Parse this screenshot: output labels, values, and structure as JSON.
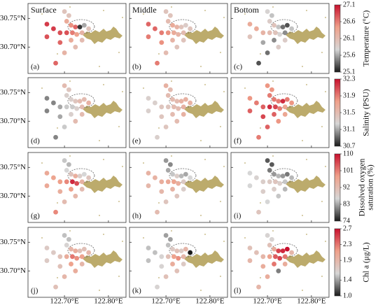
{
  "chart_data": {
    "type": "scatter",
    "columns": [
      "Surface",
      "Middle",
      "Bottom"
    ],
    "xlim": [
      122.617,
      122.84
    ],
    "ylim": [
      30.654,
      30.776
    ],
    "xticks": [
      {
        "value": 122.7,
        "label": "122.70°E"
      },
      {
        "value": 122.8,
        "label": "122.80°E"
      }
    ],
    "yticks": [
      {
        "value": 30.75,
        "label": "30.75°N"
      },
      {
        "value": 30.7,
        "label": "30.70°N"
      }
    ],
    "land_color": "#bcab6c",
    "stations": {
      "x": [
        122.7,
        122.71,
        122.705,
        122.715,
        122.725,
        122.735,
        122.745,
        122.755,
        122.74,
        122.728,
        122.718,
        122.705,
        122.69,
        122.675,
        122.66,
        122.66,
        122.69,
        122.715,
        122.74,
        122.7,
        122.68,
        122.725
      ],
      "y": [
        30.762,
        30.755,
        30.745,
        30.738,
        30.735,
        30.735,
        30.738,
        30.732,
        30.725,
        30.722,
        30.725,
        30.725,
        30.725,
        30.732,
        30.74,
        30.718,
        30.708,
        30.712,
        30.712,
        30.69,
        30.672,
        30.7
      ]
    },
    "rows": [
      {
        "colorbar": {
          "label": [
            "Temperature (°C)"
          ],
          "lim": [
            25.1,
            27.1
          ],
          "ticks": [
            25.1,
            25.6,
            26.1,
            26.6,
            27.1
          ],
          "cmap": [
            "#1a1a1a",
            "#d6d6d6",
            "#efa08a",
            "#c8102e"
          ]
        },
        "panels": [
          {
            "label": "(a)",
            "values": [
              26.0,
              26.0,
              26.3,
              26.5,
              26.7,
              25.2,
              25.6,
              26.0,
              26.2,
              26.4,
              26.6,
              26.8,
              26.8,
              26.9,
              26.9,
              26.8,
              26.7,
              26.3,
              26.1,
              26.2,
              26.7,
              26.1
            ]
          },
          {
            "label": "(b)",
            "values": [
              26.0,
              26.0,
              26.1,
              26.3,
              26.2,
              26.0,
              25.9,
              26.0,
              26.1,
              26.2,
              26.3,
              26.5,
              26.6,
              26.7,
              26.7,
              26.6,
              26.5,
              26.2,
              26.0,
              26.1,
              26.6,
              26.0
            ]
          },
          {
            "label": "(c)",
            "values": [
              25.8,
              25.7,
              25.9,
              26.0,
              25.7,
              25.4,
              25.3,
              25.7,
              25.5,
              25.8,
              26.0,
              26.1,
              26.2,
              26.3,
              26.3,
              26.0,
              25.6,
              25.5,
              25.9,
              25.4,
              25.3,
              25.9
            ]
          }
        ]
      },
      {
        "colorbar": {
          "label": [
            "Salinity (PSU)"
          ],
          "lim": [
            30.7,
            32.3
          ],
          "ticks": [
            30.7,
            31.1,
            31.5,
            31.9,
            32.3
          ],
          "cmap": [
            "#1a1a1a",
            "#d6d6d6",
            "#efa08a",
            "#c8102e"
          ]
        },
        "panels": [
          {
            "label": "(d)",
            "values": [
              31.5,
              31.4,
              31.3,
              31.3,
              31.4,
              31.5,
              31.5,
              31.6,
              31.5,
              31.3,
              31.2,
              31.2,
              31.1,
              31.0,
              31.0,
              31.0,
              31.1,
              31.3,
              31.5,
              31.2,
              31.0,
              31.5
            ]
          },
          {
            "label": "(e)",
            "values": [
              31.6,
              31.5,
              31.5,
              31.5,
              31.5,
              31.6,
              31.6,
              31.6,
              31.6,
              31.5,
              31.5,
              31.4,
              31.4,
              31.3,
              31.3,
              31.3,
              31.4,
              31.5,
              31.6,
              31.4,
              31.3,
              31.5
            ]
          },
          {
            "label": "(f)",
            "values": [
              31.8,
              31.8,
              31.9,
              31.9,
              31.9,
              32.2,
              31.9,
              31.8,
              31.7,
              31.9,
              32.1,
              32.2,
              32.0,
              31.9,
              31.8,
              32.0,
              32.1,
              32.0,
              31.7,
              32.0,
              31.9,
              31.8
            ]
          }
        ]
      },
      {
        "colorbar": {
          "label": [
            "Dissolved oxygen",
            "saturation (%)"
          ],
          "lim": [
            74,
            110
          ],
          "ticks": [
            74,
            83,
            92,
            101,
            110
          ],
          "cmap": [
            "#1a1a1a",
            "#d6d6d6",
            "#efa08a",
            "#c8102e"
          ]
        },
        "panels": [
          {
            "label": "(g)",
            "values": [
              85,
              84,
              86,
              90,
              95,
              88,
              86,
              90,
              94,
              105,
              108,
              100,
              98,
              97,
              96,
              96,
              95,
              98,
              92,
              92,
              100,
              93
            ]
          },
          {
            "label": "(h)",
            "values": [
              82,
              81,
              83,
              85,
              88,
              84,
              83,
              86,
              89,
              95,
              97,
              96,
              95,
              94,
              94,
              93,
              93,
              94,
              88,
              90,
              92,
              90
            ]
          },
          {
            "label": "(i)",
            "values": [
              78,
              78,
              80,
              82,
              84,
              82,
              80,
              84,
              85,
              88,
              90,
              89,
              88,
              87,
              86,
              86,
              88,
              88,
              84,
              86,
              90,
              85
            ]
          }
        ]
      },
      {
        "colorbar": {
          "label": [
            "Chl a (μg/L)"
          ],
          "lim": [
            1.0,
            2.7
          ],
          "ticks": [
            {
              "value": 1.0,
              "label": "1.0"
            },
            1.4,
            1.9,
            2.3,
            2.7
          ],
          "cmap": [
            "#1a1a1a",
            "#d6d6d6",
            "#efa08a",
            "#c8102e"
          ]
        },
        "panels": [
          {
            "label": "(j)",
            "values": [
              1.5,
              1.5,
              1.6,
              1.9,
              2.0,
              1.8,
              1.8,
              1.9,
              2.1,
              2.2,
              2.3,
              2.0,
              1.8,
              1.7,
              1.7,
              1.7,
              1.8,
              2.1,
              1.9,
              1.9,
              1.8,
              2.0
            ]
          },
          {
            "label": "(k)",
            "values": [
              1.4,
              1.4,
              1.5,
              1.7,
              1.8,
              1.7,
              1.9,
              1.0,
              1.9,
              2.2,
              2.1,
              1.8,
              1.6,
              1.5,
              1.5,
              1.5,
              1.6,
              2.0,
              1.7,
              1.8,
              1.6,
              1.8
            ]
          },
          {
            "label": "(l)",
            "values": [
              1.6,
              1.6,
              1.8,
              2.0,
              2.5,
              2.6,
              2.7,
              1.9,
              2.3,
              2.5,
              2.4,
              2.1,
              1.9,
              1.8,
              1.8,
              1.9,
              2.0,
              2.3,
              2.0,
              2.0,
              1.9,
              1.3
            ]
          }
        ]
      }
    ]
  }
}
